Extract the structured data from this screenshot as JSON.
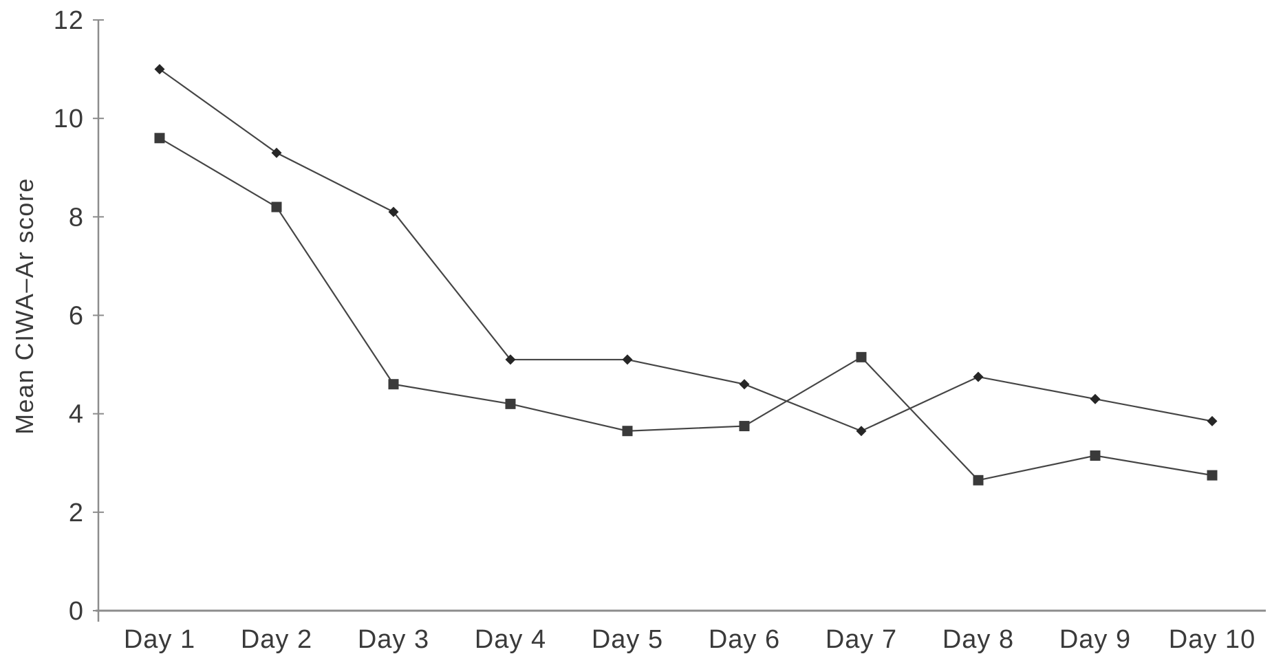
{
  "figure": {
    "ylabel": "Mean CIWA–Ar score"
  },
  "chart_data": {
    "type": "line",
    "title": "",
    "xlabel": "",
    "ylabel": "Mean CIWA–Ar score",
    "categories": [
      "Day 1",
      "Day 2",
      "Day 3",
      "Day 4",
      "Day 5",
      "Day 6",
      "Day 7",
      "Day 8",
      "Day 9",
      "Day 10"
    ],
    "y_ticks": [
      0,
      2,
      4,
      6,
      8,
      10,
      12
    ],
    "ylim": [
      0,
      12
    ],
    "grid": false,
    "legend_position": "none",
    "series": [
      {
        "name": "diamond-marker-series",
        "marker": "diamond",
        "values": [
          11.0,
          9.3,
          8.1,
          5.1,
          5.1,
          4.6,
          3.65,
          4.75,
          4.3,
          3.85
        ]
      },
      {
        "name": "square-marker-series",
        "marker": "square",
        "values": [
          9.6,
          8.2,
          4.6,
          4.2,
          3.65,
          3.75,
          5.15,
          2.65,
          3.15,
          2.75
        ]
      }
    ],
    "colors": {
      "line": "#454545",
      "diamond_marker": "#262626",
      "square_marker": "#3a3a3a",
      "axis": "#8c8c8c",
      "text": "#3a3a3a"
    }
  }
}
